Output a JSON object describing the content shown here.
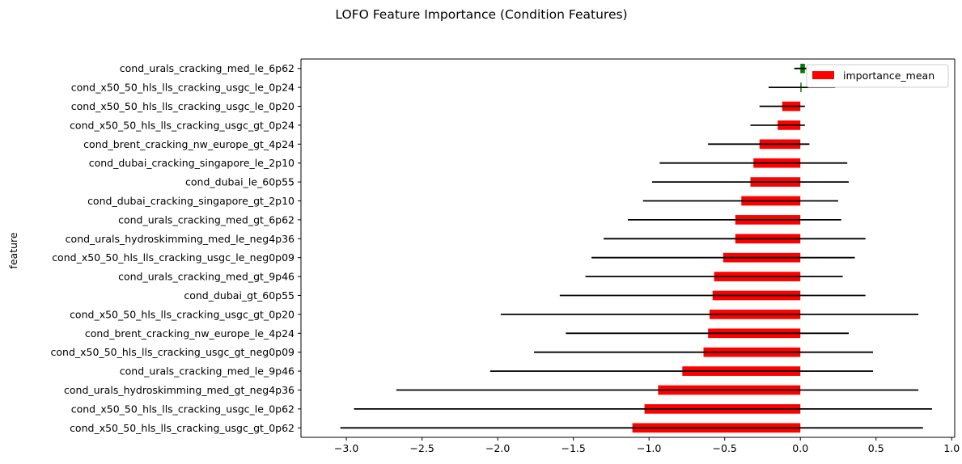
{
  "chart_data": {
    "type": "bar",
    "orientation": "horizontal",
    "title": "LOFO Feature Importance (Condition Features)",
    "xlabel": "",
    "ylabel": "feature",
    "xlim": [
      -3.3,
      1.02
    ],
    "xticks": [
      -3.0,
      -2.5,
      -2.0,
      -1.5,
      -1.0,
      -0.5,
      0.0,
      0.5,
      1.0
    ],
    "xtick_labels": [
      "−3.0",
      "−2.5",
      "−2.0",
      "−1.5",
      "−1.0",
      "−0.5",
      "0.0",
      "0.5",
      "1.0"
    ],
    "legend": {
      "label": "importance_mean",
      "color": "#ff0000",
      "placement": "top-right"
    },
    "colors": {
      "negative": "#ff0000",
      "positive": "#008000",
      "error": "#000000"
    },
    "categories": [
      "cond_urals_cracking_med_le_6p62",
      "cond_x50_50_hls_lls_cracking_usgc_le_0p24",
      "cond_x50_50_hls_lls_cracking_usgc_le_0p20",
      "cond_x50_50_hls_lls_cracking_usgc_gt_0p24",
      "cond_brent_cracking_nw_europe_gt_4p24",
      "cond_dubai_cracking_singapore_le_2p10",
      "cond_dubai_le_60p55",
      "cond_dubai_cracking_singapore_gt_2p10",
      "cond_urals_cracking_med_gt_6p62",
      "cond_urals_hydroskimming_med_le_neg4p36",
      "cond_x50_50_hls_lls_cracking_usgc_le_neg0p09",
      "cond_urals_cracking_med_gt_9p46",
      "cond_dubai_gt_60p55",
      "cond_x50_50_hls_lls_cracking_usgc_gt_0p20",
      "cond_brent_cracking_nw_europe_le_4p24",
      "cond_x50_50_hls_lls_cracking_usgc_gt_neg0p09",
      "cond_urals_cracking_med_le_9p46",
      "cond_urals_hydroskimming_med_gt_neg4p36",
      "cond_x50_50_hls_lls_cracking_usgc_le_0p62",
      "cond_x50_50_hls_lls_cracking_usgc_gt_0p62"
    ],
    "values": [
      0.03,
      0.005,
      -0.12,
      -0.15,
      -0.27,
      -0.31,
      -0.33,
      -0.39,
      -0.43,
      -0.43,
      -0.51,
      -0.57,
      -0.58,
      -0.6,
      -0.61,
      -0.64,
      -0.78,
      -0.94,
      -1.03,
      -1.11
    ],
    "error_low": [
      -0.04,
      -0.21,
      -0.27,
      -0.33,
      -0.61,
      -0.93,
      -0.98,
      -1.04,
      -1.14,
      -1.3,
      -1.38,
      -1.42,
      -1.59,
      -1.98,
      -1.55,
      -1.76,
      -2.05,
      -2.67,
      -2.95,
      -3.04
    ],
    "error_high": [
      0.1,
      0.23,
      0.03,
      0.03,
      0.06,
      0.31,
      0.32,
      0.25,
      0.27,
      0.43,
      0.36,
      0.28,
      0.43,
      0.78,
      0.32,
      0.48,
      0.48,
      0.78,
      0.87,
      0.81
    ],
    "grid": false
  }
}
